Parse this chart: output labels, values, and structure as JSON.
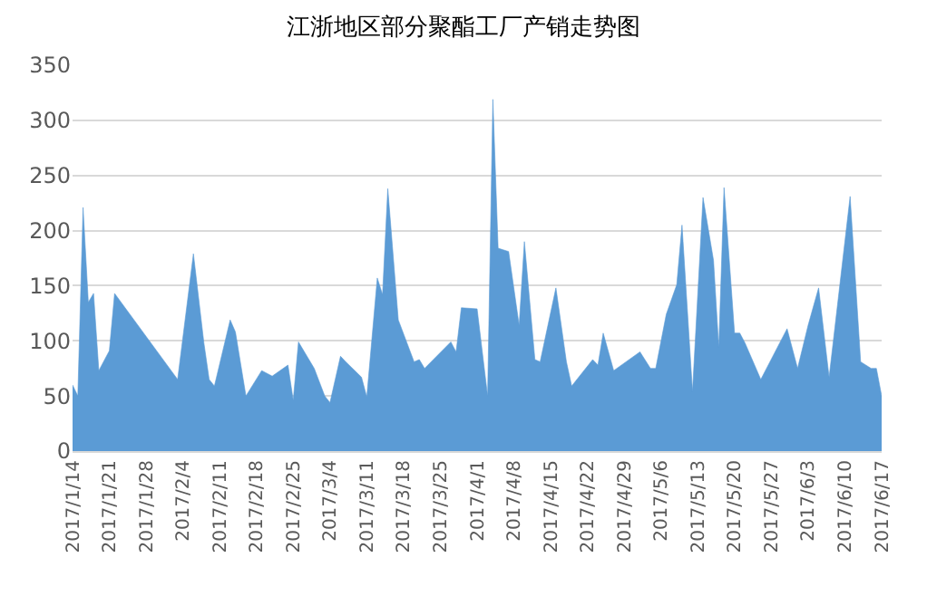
{
  "chart_data": {
    "type": "area",
    "title": "江浙地区部分聚酯工厂产销走势图",
    "x": [
      "2017-01-14",
      "2017-01-15",
      "2017-01-16",
      "2017-01-17",
      "2017-01-18",
      "2017-01-19",
      "2017-01-21",
      "2017-01-22",
      "2017-02-03",
      "2017-02-06",
      "2017-02-08",
      "2017-02-09",
      "2017-02-10",
      "2017-02-13",
      "2017-02-14",
      "2017-02-16",
      "2017-02-19",
      "2017-02-21",
      "2017-02-24",
      "2017-02-25",
      "2017-02-26",
      "2017-03-01",
      "2017-03-03",
      "2017-03-04",
      "2017-03-06",
      "2017-03-07",
      "2017-03-10",
      "2017-03-11",
      "2017-03-13",
      "2017-03-14",
      "2017-03-15",
      "2017-03-17",
      "2017-03-20",
      "2017-03-21",
      "2017-03-22",
      "2017-03-27",
      "2017-03-28",
      "2017-03-29",
      "2017-04-01",
      "2017-04-03",
      "2017-04-04",
      "2017-04-05",
      "2017-04-07",
      "2017-04-09",
      "2017-04-10",
      "2017-04-12",
      "2017-04-13",
      "2017-04-16",
      "2017-04-18",
      "2017-04-19",
      "2017-04-23",
      "2017-04-24",
      "2017-04-25",
      "2017-04-27",
      "2017-05-02",
      "2017-05-04",
      "2017-05-05",
      "2017-05-07",
      "2017-05-09",
      "2017-05-10",
      "2017-05-12",
      "2017-05-14",
      "2017-05-16",
      "2017-05-17",
      "2017-05-18",
      "2017-05-20",
      "2017-05-21",
      "2017-05-22",
      "2017-05-25",
      "2017-05-30",
      "2017-06-01",
      "2017-06-03",
      "2017-06-05",
      "2017-06-07",
      "2017-06-11",
      "2017-06-13",
      "2017-06-15",
      "2017-06-16",
      "2017-06-17"
    ],
    "series": [
      {
        "color": "#5b9bd5",
        "values": [
          60,
          50,
          221,
          135,
          143,
          73,
          91,
          143,
          65,
          179,
          98,
          65,
          59,
          119,
          108,
          50,
          73,
          68,
          78,
          46,
          99,
          75,
          50,
          44,
          86,
          81,
          67,
          49,
          157,
          142,
          238,
          119,
          81,
          83,
          75,
          99,
          90,
          130,
          129,
          50,
          319,
          184,
          181,
          114,
          190,
          83,
          81,
          148,
          81,
          59,
          83,
          78,
          107,
          73,
          90,
          75,
          75,
          124,
          151,
          205,
          54,
          230,
          173,
          94,
          239,
          107,
          107,
          98,
          65,
          111,
          75,
          114,
          148,
          67,
          231,
          81,
          75,
          75,
          50
        ]
      }
    ],
    "xlim": [
      "2017-01-14",
      "2017-06-17"
    ],
    "xticks": [
      {
        "value": "2017-01-14",
        "label": "2017/1/14"
      },
      {
        "value": "2017-01-21",
        "label": "2017/1/21"
      },
      {
        "value": "2017-01-28",
        "label": "2017/1/28"
      },
      {
        "value": "2017-02-04",
        "label": "2017/2/4"
      },
      {
        "value": "2017-02-11",
        "label": "2017/2/11"
      },
      {
        "value": "2017-02-18",
        "label": "2017/2/18"
      },
      {
        "value": "2017-02-25",
        "label": "2017/2/25"
      },
      {
        "value": "2017-03-04",
        "label": "2017/3/4"
      },
      {
        "value": "2017-03-11",
        "label": "2017/3/11"
      },
      {
        "value": "2017-03-18",
        "label": "2017/3/18"
      },
      {
        "value": "2017-03-25",
        "label": "2017/3/25"
      },
      {
        "value": "2017-04-01",
        "label": "2017/4/1"
      },
      {
        "value": "2017-04-08",
        "label": "2017/4/8"
      },
      {
        "value": "2017-04-15",
        "label": "2017/4/15"
      },
      {
        "value": "2017-04-22",
        "label": "2017/4/22"
      },
      {
        "value": "2017-04-29",
        "label": "2017/4/29"
      },
      {
        "value": "2017-05-06",
        "label": "2017/5/6"
      },
      {
        "value": "2017-05-13",
        "label": "2017/5/13"
      },
      {
        "value": "2017-05-20",
        "label": "2017/5/20"
      },
      {
        "value": "2017-05-27",
        "label": "2017/5/27"
      },
      {
        "value": "2017-06-03",
        "label": "2017/6/3"
      },
      {
        "value": "2017-06-10",
        "label": "2017/6/10"
      },
      {
        "value": "2017-06-17",
        "label": "2017/6/17"
      }
    ],
    "ylim": [
      0,
      350
    ],
    "yticks": [
      0,
      50,
      100,
      150,
      200,
      250,
      300,
      350
    ],
    "grid": "y"
  }
}
